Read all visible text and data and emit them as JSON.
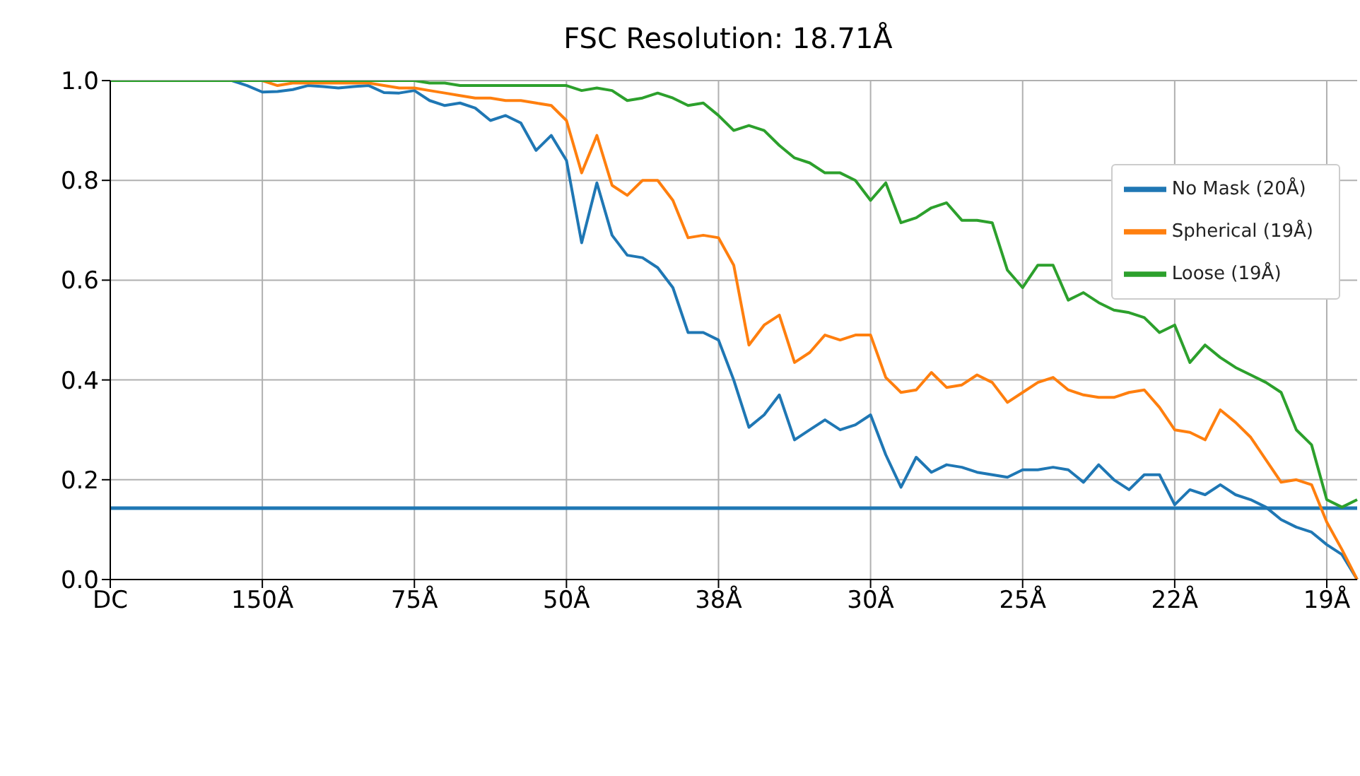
{
  "chart_data": {
    "type": "line",
    "title": "FSC Resolution: 18.71Å",
    "categories": [
      "DC",
      null,
      null,
      null,
      null,
      null,
      null,
      null,
      null,
      null,
      "150Å",
      null,
      null,
      null,
      null,
      null,
      null,
      null,
      null,
      null,
      "75Å",
      null,
      null,
      null,
      null,
      null,
      null,
      null,
      null,
      null,
      "50Å",
      null,
      null,
      null,
      null,
      null,
      null,
      null,
      null,
      null,
      "38Å",
      null,
      null,
      null,
      null,
      null,
      null,
      null,
      null,
      null,
      "30Å",
      null,
      null,
      null,
      null,
      null,
      null,
      null,
      null,
      null,
      "25Å",
      null,
      null,
      null,
      null,
      null,
      null,
      null,
      null,
      null,
      "22Å",
      null,
      null,
      null,
      null,
      null,
      null,
      null,
      null,
      null,
      "19Å",
      null,
      null
    ],
    "ylim": [
      0,
      1
    ],
    "yticks": [
      {
        "value": 0,
        "label": "0.0"
      },
      {
        "value": 0.2,
        "label": "0.2"
      },
      {
        "value": 0.4,
        "label": "0.4"
      },
      {
        "value": 0.6,
        "label": "0.6"
      },
      {
        "value": 0.8,
        "label": "0.8"
      },
      {
        "value": 1,
        "label": "1.0"
      }
    ],
    "grid": true,
    "legend": "top right",
    "line_style": "solid",
    "ref_lines": [
      {
        "axis": "y",
        "value": 0.143,
        "color": "#1f77b4"
      }
    ],
    "series": [
      {
        "name": "No Mask (20Å)",
        "color": "#1f77b4",
        "values": [
          null,
          null,
          null,
          null,
          null,
          null,
          null,
          null,
          1.0,
          0.99,
          0.977,
          0.978,
          0.982,
          0.99,
          0.988,
          0.985,
          0.988,
          0.99,
          0.976,
          0.975,
          0.98,
          0.96,
          0.95,
          0.955,
          0.945,
          0.92,
          0.93,
          0.915,
          0.86,
          0.89,
          0.84,
          0.675,
          0.795,
          0.69,
          0.65,
          0.645,
          0.625,
          0.585,
          0.495,
          0.495,
          0.48,
          0.4,
          0.305,
          0.33,
          0.37,
          0.28,
          0.3,
          0.32,
          0.3,
          0.31,
          0.33,
          0.25,
          0.185,
          0.245,
          0.215,
          0.23,
          0.225,
          0.215,
          0.21,
          0.205,
          0.22,
          0.22,
          0.225,
          0.22,
          0.195,
          0.23,
          0.2,
          0.18,
          0.21,
          0.21,
          0.15,
          0.18,
          0.17,
          0.19,
          0.17,
          0.16,
          0.145,
          0.12,
          0.105,
          0.095,
          0.07,
          0.05,
          0.0
        ]
      },
      {
        "name": "Spherical (19Å)",
        "color": "#ff7f0e",
        "values": [
          null,
          null,
          null,
          null,
          null,
          null,
          null,
          null,
          null,
          null,
          1.0,
          0.99,
          0.995,
          0.995,
          0.995,
          0.995,
          0.995,
          0.995,
          0.99,
          0.985,
          0.985,
          0.98,
          0.975,
          0.97,
          0.965,
          0.965,
          0.96,
          0.96,
          0.955,
          0.95,
          0.92,
          0.815,
          0.89,
          0.79,
          0.77,
          0.8,
          0.8,
          0.76,
          0.685,
          0.69,
          0.685,
          0.63,
          0.47,
          0.51,
          0.53,
          0.435,
          0.455,
          0.49,
          0.48,
          0.49,
          0.49,
          0.405,
          0.375,
          0.38,
          0.415,
          0.385,
          0.39,
          0.41,
          0.395,
          0.355,
          0.375,
          0.395,
          0.405,
          0.38,
          0.37,
          0.365,
          0.365,
          0.375,
          0.38,
          0.345,
          0.3,
          0.295,
          0.28,
          0.34,
          0.315,
          0.285,
          0.24,
          0.195,
          0.2,
          0.19,
          0.115,
          0.06,
          0.0
        ]
      },
      {
        "name": "Loose (19Å)",
        "color": "#2ca02c",
        "values": [
          1.0,
          1.0,
          1.0,
          1.0,
          1.0,
          1.0,
          1.0,
          1.0,
          1.0,
          1.0,
          1.0,
          1.0,
          1.0,
          1.0,
          1.0,
          1.0,
          1.0,
          1.0,
          1.0,
          1.0,
          1.0,
          0.995,
          0.995,
          0.99,
          0.99,
          0.99,
          0.99,
          0.99,
          0.99,
          0.99,
          0.99,
          0.98,
          0.985,
          0.98,
          0.96,
          0.965,
          0.975,
          0.965,
          0.95,
          0.955,
          0.93,
          0.9,
          0.91,
          0.9,
          0.87,
          0.845,
          0.835,
          0.815,
          0.815,
          0.8,
          0.76,
          0.795,
          0.715,
          0.725,
          0.745,
          0.755,
          0.72,
          0.72,
          0.715,
          0.62,
          0.585,
          0.63,
          0.63,
          0.56,
          0.575,
          0.555,
          0.54,
          0.535,
          0.525,
          0.495,
          0.51,
          0.435,
          0.47,
          0.445,
          0.425,
          0.41,
          0.395,
          0.375,
          0.3,
          0.27,
          0.16,
          0.145,
          0.16
        ]
      }
    ]
  }
}
